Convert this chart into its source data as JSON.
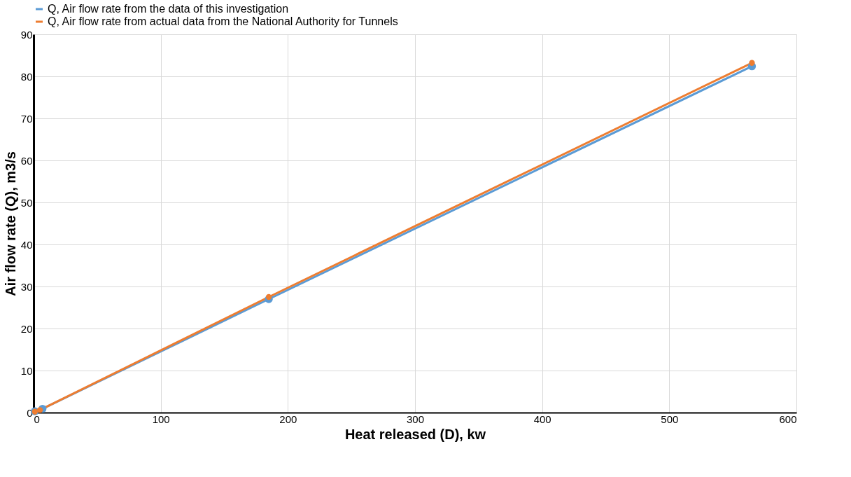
{
  "chart_data": {
    "type": "line",
    "xlabel": "Heat released (D), kw",
    "ylabel": "Air flow rate (Q), m3/s",
    "series": [
      {
        "name": "Q, Air flow rate from the data of this investigation",
        "color": "#5b9bd5",
        "x": [
          1,
          7,
          185,
          565
        ],
        "values": [
          0.3,
          0.9,
          27,
          82.4
        ]
      },
      {
        "name": "Q, Air flow rate from actual data from the National Authority for Tunnels",
        "color": "#ed7d31",
        "x": [
          1,
          5,
          185,
          565
        ],
        "values": [
          0.2,
          0.6,
          27.5,
          83.2
        ]
      }
    ],
    "xlim": [
      0,
      600
    ],
    "xticks": [
      0,
      100,
      200,
      300,
      400,
      500,
      600
    ],
    "ylim": [
      0,
      90
    ],
    "yticks": [
      0,
      10,
      20,
      30,
      40,
      50,
      60,
      70,
      80,
      90
    ],
    "grid": true,
    "legend": "top left",
    "marker": "circle",
    "line_style": "solid"
  }
}
